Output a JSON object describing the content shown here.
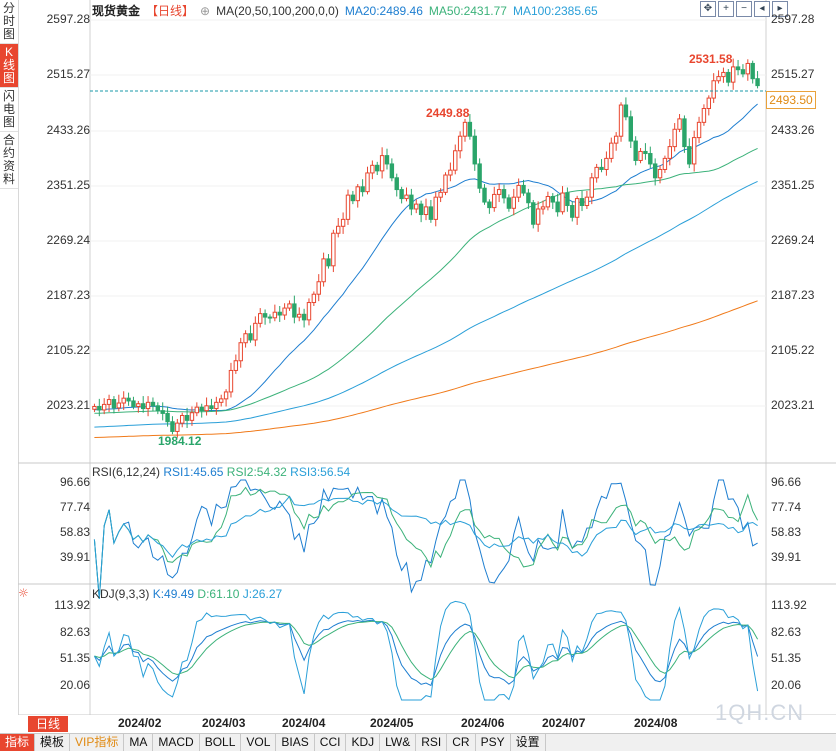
{
  "leftbar": [
    "分时图",
    "K线图",
    "闪电图",
    "合约资料"
  ],
  "header": {
    "title": "现货黄金",
    "period": "【日线】",
    "ma_label": "MA(20,50,100,200,0,0)",
    "ma20": "MA20:2489.46",
    "ma50": "MA50:2431.77",
    "ma100": "MA100:2385.65"
  },
  "colors": {
    "up": "#e8462f",
    "down": "#2aa56a",
    "ma20": "#1e7ed0",
    "ma50": "#3cb27a",
    "ma100": "#2a9fd8",
    "ma200": "#f07a1a",
    "rsi1": "#1e7ed0",
    "rsi2": "#3cb27a",
    "rsi3": "#2a9fd8"
  },
  "price_axis": {
    "ticks": [
      "2597.28",
      "2515.27",
      "2433.26",
      "2351.25",
      "2269.24",
      "2187.23",
      "2105.22",
      "2023.21"
    ],
    "min": 1960,
    "max": 2605
  },
  "current_price": "2493.50",
  "annotations": {
    "high1": "2449.88",
    "high2": "2531.58",
    "low": "1984.12"
  },
  "rsi": {
    "label": "RSI(6,12,24)",
    "rsi1": "RSI1:45.65",
    "rsi2": "RSI2:54.32",
    "rsi3": "RSI3:56.54",
    "ticks": [
      "96.66",
      "77.74",
      "58.83",
      "39.91"
    ]
  },
  "kdj": {
    "label": "KDJ(9,3,3)",
    "k": "K:49.49",
    "d": "D:61.10",
    "j": "J:26.27",
    "ticks": [
      "113.92",
      "82.63",
      "51.35",
      "20.06"
    ]
  },
  "months": [
    "2024/02",
    "2024/03",
    "2024/04",
    "2024/05",
    "2024/06",
    "2024/07",
    "2024/08"
  ],
  "period_button": "日线",
  "footer": [
    "指标",
    "模板",
    "VIP指标",
    "MA",
    "MACD",
    "BOLL",
    "VOL",
    "BIAS",
    "CCI",
    "KDJ",
    "LW&",
    "RSI",
    "CR",
    "PSY",
    "设置"
  ],
  "watermark": "1QH.CN",
  "chart_data": {
    "type": "candlestick",
    "closes": [
      2030,
      2025,
      2033,
      2040,
      2028,
      2035,
      2042,
      2038,
      2030,
      2034,
      2027,
      2036,
      2031,
      2024,
      2020,
      2008,
      1994,
      2006,
      2017,
      2010,
      2021,
      2029,
      2024,
      2031,
      2027,
      2036,
      2041,
      2051,
      2082,
      2096,
      2122,
      2135,
      2126,
      2150,
      2164,
      2159,
      2158,
      2166,
      2162,
      2172,
      2178,
      2159,
      2163,
      2155,
      2180,
      2192,
      2210,
      2243,
      2233,
      2280,
      2290,
      2300,
      2335,
      2327,
      2347,
      2340,
      2367,
      2378,
      2370,
      2392,
      2380,
      2360,
      2343,
      2330,
      2335,
      2315,
      2322,
      2307,
      2318,
      2300,
      2332,
      2339,
      2364,
      2371,
      2399,
      2420,
      2440,
      2420,
      2380,
      2345,
      2325,
      2317,
      2336,
      2343,
      2331,
      2316,
      2332,
      2349,
      2338,
      2324,
      2293,
      2315,
      2318,
      2333,
      2325,
      2311,
      2338,
      2320,
      2303,
      2330,
      2320,
      2332,
      2360,
      2375,
      2372,
      2388,
      2410,
      2420,
      2465,
      2448,
      2413,
      2385,
      2398,
      2395,
      2380,
      2360,
      2372,
      2388,
      2405,
      2430,
      2445,
      2405,
      2380,
      2418,
      2440,
      2460,
      2475,
      2500,
      2506,
      2512,
      2498,
      2520,
      2516,
      2510,
      2525,
      2503,
      2493
    ]
  }
}
